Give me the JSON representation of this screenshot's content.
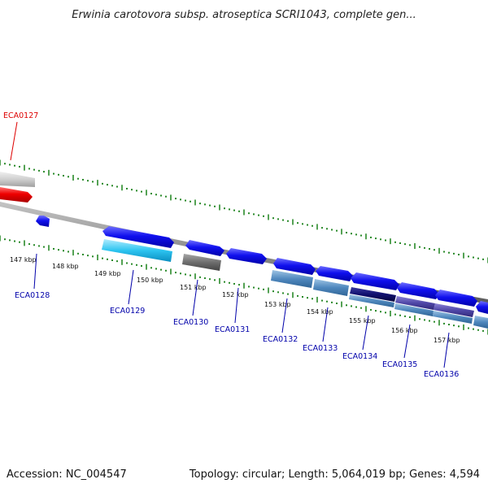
{
  "title": "Erwinia carotovora subsp. atroseptica SCRI1043, complete gen...",
  "footer": {
    "accession": "Accession: NC_004547",
    "summary": "Topology: circular; Length: 5,064,019 bp; Genes: 4,594"
  },
  "ticks": [
    "147 kbp",
    "148 kbp",
    "149 kbp",
    "150 kbp",
    "151 kbp",
    "152 kbp",
    "153 kbp",
    "154 kbp",
    "155 kbp",
    "156 kbp",
    "157 kbp"
  ],
  "genes": [
    "ECA0127",
    "ECA0128",
    "ECA0129",
    "ECA0130",
    "ECA0131",
    "ECA0132",
    "ECA0133",
    "ECA0134",
    "ECA0135",
    "ECA0136"
  ],
  "colors": {
    "highlight_gene": "#dd0000",
    "gene_label": "#0000aa",
    "feature_blue": "#1010e0",
    "tick_green": "#2a8a2a",
    "backbone": "#8a8a8a"
  }
}
